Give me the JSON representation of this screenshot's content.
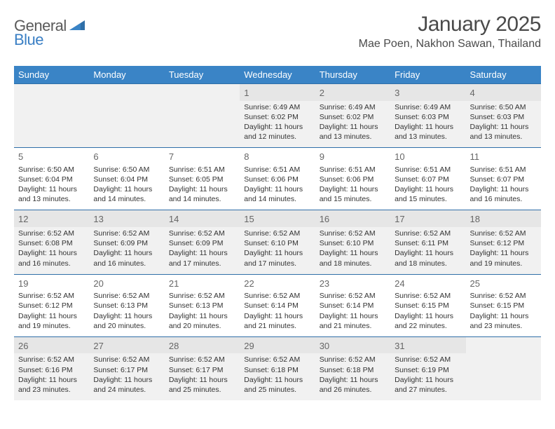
{
  "logo": {
    "text1": "General",
    "text2": "Blue"
  },
  "title": "January 2025",
  "location": "Mae Poen, Nakhon Sawan, Thailand",
  "colors": {
    "header_bg": "#3a84c6",
    "header_text": "#ffffff",
    "week_border": "#2f6fa8",
    "shade_bg": "#f1f1f1",
    "text": "#333333",
    "daynum": "#666666",
    "logo_gray": "#5a5a5a",
    "logo_blue": "#3a7fc4",
    "page_bg": "#ffffff"
  },
  "typography": {
    "title_fontsize": 30,
    "location_fontsize": 16,
    "header_fontsize": 13,
    "daynum_fontsize": 13,
    "cell_fontsize": 10.5
  },
  "weekdays": [
    "Sunday",
    "Monday",
    "Tuesday",
    "Wednesday",
    "Thursday",
    "Friday",
    "Saturday"
  ],
  "weeks": [
    [
      null,
      null,
      null,
      {
        "n": "1",
        "sr": "Sunrise: 6:49 AM",
        "ss": "Sunset: 6:02 PM",
        "dl": "Daylight: 11 hours and 12 minutes."
      },
      {
        "n": "2",
        "sr": "Sunrise: 6:49 AM",
        "ss": "Sunset: 6:02 PM",
        "dl": "Daylight: 11 hours and 13 minutes."
      },
      {
        "n": "3",
        "sr": "Sunrise: 6:49 AM",
        "ss": "Sunset: 6:03 PM",
        "dl": "Daylight: 11 hours and 13 minutes."
      },
      {
        "n": "4",
        "sr": "Sunrise: 6:50 AM",
        "ss": "Sunset: 6:03 PM",
        "dl": "Daylight: 11 hours and 13 minutes."
      }
    ],
    [
      {
        "n": "5",
        "sr": "Sunrise: 6:50 AM",
        "ss": "Sunset: 6:04 PM",
        "dl": "Daylight: 11 hours and 13 minutes."
      },
      {
        "n": "6",
        "sr": "Sunrise: 6:50 AM",
        "ss": "Sunset: 6:04 PM",
        "dl": "Daylight: 11 hours and 14 minutes."
      },
      {
        "n": "7",
        "sr": "Sunrise: 6:51 AM",
        "ss": "Sunset: 6:05 PM",
        "dl": "Daylight: 11 hours and 14 minutes."
      },
      {
        "n": "8",
        "sr": "Sunrise: 6:51 AM",
        "ss": "Sunset: 6:06 PM",
        "dl": "Daylight: 11 hours and 14 minutes."
      },
      {
        "n": "9",
        "sr": "Sunrise: 6:51 AM",
        "ss": "Sunset: 6:06 PM",
        "dl": "Daylight: 11 hours and 15 minutes."
      },
      {
        "n": "10",
        "sr": "Sunrise: 6:51 AM",
        "ss": "Sunset: 6:07 PM",
        "dl": "Daylight: 11 hours and 15 minutes."
      },
      {
        "n": "11",
        "sr": "Sunrise: 6:51 AM",
        "ss": "Sunset: 6:07 PM",
        "dl": "Daylight: 11 hours and 16 minutes."
      }
    ],
    [
      {
        "n": "12",
        "sr": "Sunrise: 6:52 AM",
        "ss": "Sunset: 6:08 PM",
        "dl": "Daylight: 11 hours and 16 minutes."
      },
      {
        "n": "13",
        "sr": "Sunrise: 6:52 AM",
        "ss": "Sunset: 6:09 PM",
        "dl": "Daylight: 11 hours and 16 minutes."
      },
      {
        "n": "14",
        "sr": "Sunrise: 6:52 AM",
        "ss": "Sunset: 6:09 PM",
        "dl": "Daylight: 11 hours and 17 minutes."
      },
      {
        "n": "15",
        "sr": "Sunrise: 6:52 AM",
        "ss": "Sunset: 6:10 PM",
        "dl": "Daylight: 11 hours and 17 minutes."
      },
      {
        "n": "16",
        "sr": "Sunrise: 6:52 AM",
        "ss": "Sunset: 6:10 PM",
        "dl": "Daylight: 11 hours and 18 minutes."
      },
      {
        "n": "17",
        "sr": "Sunrise: 6:52 AM",
        "ss": "Sunset: 6:11 PM",
        "dl": "Daylight: 11 hours and 18 minutes."
      },
      {
        "n": "18",
        "sr": "Sunrise: 6:52 AM",
        "ss": "Sunset: 6:12 PM",
        "dl": "Daylight: 11 hours and 19 minutes."
      }
    ],
    [
      {
        "n": "19",
        "sr": "Sunrise: 6:52 AM",
        "ss": "Sunset: 6:12 PM",
        "dl": "Daylight: 11 hours and 19 minutes."
      },
      {
        "n": "20",
        "sr": "Sunrise: 6:52 AM",
        "ss": "Sunset: 6:13 PM",
        "dl": "Daylight: 11 hours and 20 minutes."
      },
      {
        "n": "21",
        "sr": "Sunrise: 6:52 AM",
        "ss": "Sunset: 6:13 PM",
        "dl": "Daylight: 11 hours and 20 minutes."
      },
      {
        "n": "22",
        "sr": "Sunrise: 6:52 AM",
        "ss": "Sunset: 6:14 PM",
        "dl": "Daylight: 11 hours and 21 minutes."
      },
      {
        "n": "23",
        "sr": "Sunrise: 6:52 AM",
        "ss": "Sunset: 6:14 PM",
        "dl": "Daylight: 11 hours and 21 minutes."
      },
      {
        "n": "24",
        "sr": "Sunrise: 6:52 AM",
        "ss": "Sunset: 6:15 PM",
        "dl": "Daylight: 11 hours and 22 minutes."
      },
      {
        "n": "25",
        "sr": "Sunrise: 6:52 AM",
        "ss": "Sunset: 6:15 PM",
        "dl": "Daylight: 11 hours and 23 minutes."
      }
    ],
    [
      {
        "n": "26",
        "sr": "Sunrise: 6:52 AM",
        "ss": "Sunset: 6:16 PM",
        "dl": "Daylight: 11 hours and 23 minutes."
      },
      {
        "n": "27",
        "sr": "Sunrise: 6:52 AM",
        "ss": "Sunset: 6:17 PM",
        "dl": "Daylight: 11 hours and 24 minutes."
      },
      {
        "n": "28",
        "sr": "Sunrise: 6:52 AM",
        "ss": "Sunset: 6:17 PM",
        "dl": "Daylight: 11 hours and 25 minutes."
      },
      {
        "n": "29",
        "sr": "Sunrise: 6:52 AM",
        "ss": "Sunset: 6:18 PM",
        "dl": "Daylight: 11 hours and 25 minutes."
      },
      {
        "n": "30",
        "sr": "Sunrise: 6:52 AM",
        "ss": "Sunset: 6:18 PM",
        "dl": "Daylight: 11 hours and 26 minutes."
      },
      {
        "n": "31",
        "sr": "Sunrise: 6:52 AM",
        "ss": "Sunset: 6:19 PM",
        "dl": "Daylight: 11 hours and 27 minutes."
      },
      null
    ]
  ],
  "shaded_weeks": [
    0,
    2,
    4
  ]
}
